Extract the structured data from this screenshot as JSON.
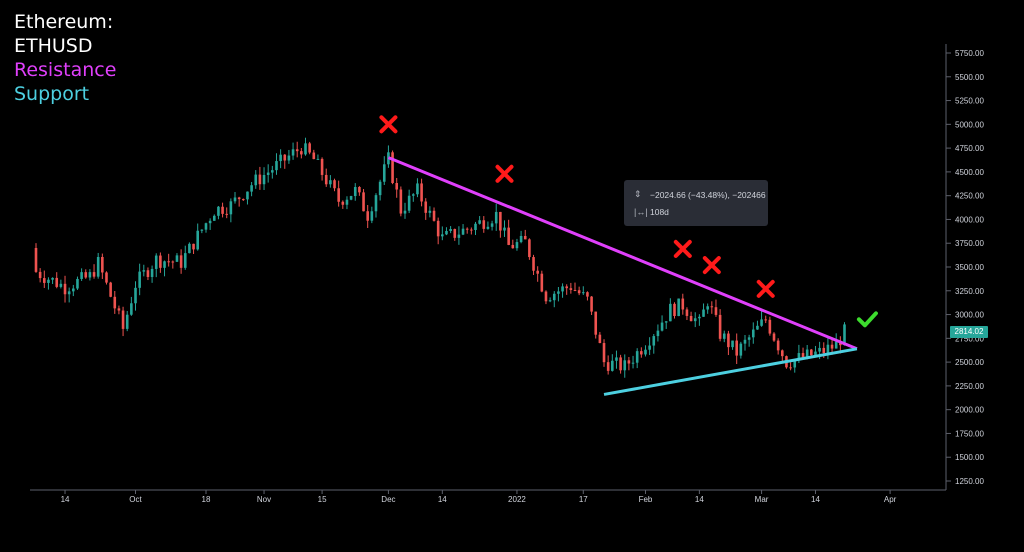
{
  "title": {
    "line1": "Ethereum:",
    "line2": "ETHUSD",
    "resistance_label": "Resistance",
    "support_label": "Support"
  },
  "colors": {
    "background": "#000000",
    "up_candle": "#26a69a",
    "down_candle": "#ef5350",
    "resistance": "#e040fb",
    "support": "#4dd0e1",
    "marker_x": "#ff1a1a",
    "marker_check": "#3ddc2e",
    "axis_text": "#d1d4dc"
  },
  "tooltip": {
    "icon_range": "range-icon",
    "icon_bars": "bars-icon",
    "price_change": "−2024.66 (−43.48%), −202466",
    "duration": "108d"
  },
  "current_price": "2814.02",
  "chart_data": {
    "type": "candlestick",
    "symbol": "ETHUSD",
    "y_axis": {
      "ticks": [
        "5750.00",
        "5500.00",
        "5250.00",
        "5000.00",
        "4750.00",
        "4500.00",
        "4250.00",
        "4000.00",
        "3750.00",
        "3500.00",
        "3250.00",
        "3000.00",
        "2750.00",
        "2500.00",
        "2250.00",
        "2000.00",
        "1750.00",
        "1500.00",
        "1250.00"
      ],
      "range": [
        1250,
        5750
      ]
    },
    "x_axis": {
      "ticks": [
        "14",
        "Oct",
        "18",
        "Nov",
        "15",
        "Dec",
        "14",
        "2022",
        "17",
        "Feb",
        "14",
        "Mar",
        "14",
        "Apr"
      ],
      "range": [
        "2021-09-07",
        "2022-04-14"
      ]
    },
    "anchors": [
      {
        "date": "2021-09-07",
        "close": 3450
      },
      {
        "date": "2021-09-14",
        "close": 3290
      },
      {
        "date": "2021-09-20",
        "close": 3400
      },
      {
        "date": "2021-09-22",
        "close": 3540
      },
      {
        "date": "2021-09-28",
        "close": 2850
      },
      {
        "date": "2021-10-01",
        "close": 3320
      },
      {
        "date": "2021-10-06",
        "close": 3580
      },
      {
        "date": "2021-10-12",
        "close": 3550
      },
      {
        "date": "2021-10-20",
        "close": 4100
      },
      {
        "date": "2021-10-24",
        "close": 4150
      },
      {
        "date": "2021-10-29",
        "close": 4370
      },
      {
        "date": "2021-11-02",
        "close": 4500
      },
      {
        "date": "2021-11-10",
        "close": 4760
      },
      {
        "date": "2021-11-13",
        "close": 4630
      },
      {
        "date": "2021-11-19",
        "close": 4200
      },
      {
        "date": "2021-11-23",
        "close": 4300
      },
      {
        "date": "2021-11-26",
        "close": 4050
      },
      {
        "date": "2021-12-01",
        "close": 4630
      },
      {
        "date": "2021-12-04",
        "close": 4100
      },
      {
        "date": "2021-12-08",
        "close": 4300
      },
      {
        "date": "2021-12-14",
        "close": 3800
      },
      {
        "date": "2021-12-20",
        "close": 3900
      },
      {
        "date": "2021-12-27",
        "close": 4050
      },
      {
        "date": "2021-12-30",
        "close": 3720
      },
      {
        "date": "2022-01-03",
        "close": 3760
      },
      {
        "date": "2022-01-08",
        "close": 3200
      },
      {
        "date": "2022-01-14",
        "close": 3300
      },
      {
        "date": "2022-01-18",
        "close": 3150
      },
      {
        "date": "2022-01-22",
        "close": 2500
      },
      {
        "date": "2022-01-27",
        "close": 2450
      },
      {
        "date": "2022-02-01",
        "close": 2700
      },
      {
        "date": "2022-02-07",
        "close": 3050
      },
      {
        "date": "2022-02-10",
        "close": 3100
      },
      {
        "date": "2022-02-14",
        "close": 2900
      },
      {
        "date": "2022-02-16",
        "close": 3150
      },
      {
        "date": "2022-02-19",
        "close": 2800
      },
      {
        "date": "2022-02-23",
        "close": 2600
      },
      {
        "date": "2022-02-26",
        "close": 2750
      },
      {
        "date": "2022-03-02",
        "close": 2950
      },
      {
        "date": "2022-03-07",
        "close": 2500
      },
      {
        "date": "2022-03-15",
        "close": 2600
      },
      {
        "date": "2022-03-19",
        "close": 2680
      },
      {
        "date": "2022-03-21",
        "close": 2814
      }
    ],
    "resistance_line": [
      {
        "date": "2021-12-01",
        "price": 4650
      },
      {
        "date": "2022-03-24",
        "price": 2640
      }
    ],
    "support_line": [
      {
        "date": "2022-01-22",
        "price": 2160
      },
      {
        "date": "2022-03-24",
        "price": 2640
      }
    ],
    "rejection_markers": [
      {
        "date": "2021-12-01",
        "price": 5000
      },
      {
        "date": "2021-12-29",
        "price": 4480
      },
      {
        "date": "2022-02-10",
        "price": 3690
      },
      {
        "date": "2022-02-17",
        "price": 3520
      },
      {
        "date": "2022-03-02",
        "price": 3270
      }
    ],
    "breakout_marker": {
      "date": "2022-03-24",
      "price": 2950
    }
  }
}
